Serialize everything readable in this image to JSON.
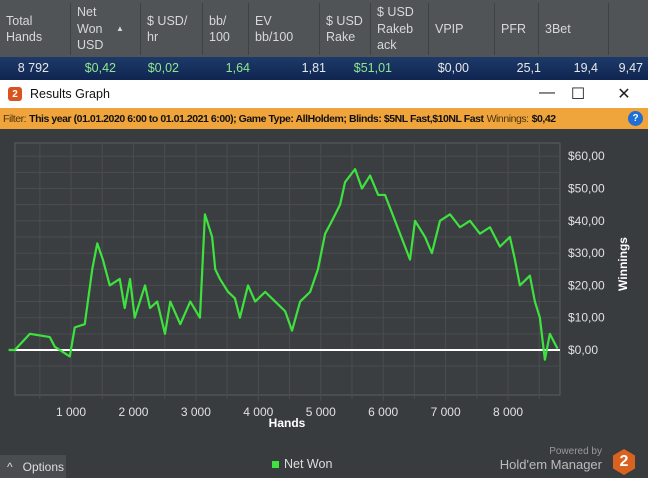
{
  "table": {
    "columns": [
      {
        "label": "Total Hands",
        "w": 71
      },
      {
        "label": "Net Won USD",
        "w": 70,
        "sort": "▲"
      },
      {
        "label": "$ USD/ hr",
        "w": 62
      },
      {
        "label": "bb/ 100",
        "w": 46
      },
      {
        "label": "EV bb/100",
        "w": 71
      },
      {
        "label": "$ USD Rake",
        "w": 51
      },
      {
        "label": "$ USD Rakeb ack",
        "w": 58
      },
      {
        "label": "VPIP",
        "w": 66
      },
      {
        "label": "PFR",
        "w": 44
      },
      {
        "label": "3Bet",
        "w": 70
      }
    ],
    "row": [
      {
        "v": "8 792",
        "r": 596,
        "g": false
      },
      {
        "v": "$0,42",
        "r": 529,
        "g": true
      },
      {
        "v": "$0,02",
        "r": 466,
        "g": true
      },
      {
        "v": "1,64",
        "r": 395,
        "g": true
      },
      {
        "v": "1,81",
        "r": 319,
        "g": false
      },
      {
        "v": "$51,01",
        "r": 253,
        "g": true
      },
      {
        "v": "$0,00",
        "r": 176,
        "g": false
      },
      {
        "v": "25,1",
        "r": 104,
        "g": false
      },
      {
        "v": "19,4",
        "r": 47,
        "g": false
      },
      {
        "v": "9,47",
        "r": 2,
        "g": false
      }
    ]
  },
  "window": {
    "title": "Results Graph",
    "logo": "2",
    "minimize": "—",
    "maximize": "☐",
    "close": "✕"
  },
  "filter": {
    "label": "Filter:",
    "text": "This year (01.01.2020 6:00 to 01.01.2021 6:00); Game Type: AllHoldem; Blinds: $5NL Fast,$10NL Fast",
    "winnings_label": "Winnings:",
    "winnings_value": "$0,42",
    "help": "?"
  },
  "chart_data": {
    "type": "line",
    "xlabel": "Hands",
    "ylabel": "Winnings",
    "xlim": [
      0,
      8900
    ],
    "ylim": [
      -8,
      64
    ],
    "xticks": [
      1000,
      2000,
      3000,
      4000,
      5000,
      6000,
      7000,
      8000
    ],
    "xtick_labels": [
      "1 000",
      "2 000",
      "3 000",
      "4 000",
      "5 000",
      "6 000",
      "7 000",
      "8 000"
    ],
    "yticks": [
      0,
      10,
      20,
      30,
      40,
      50,
      60
    ],
    "ytick_labels": [
      "$0,00",
      "$10,00",
      "$20,00",
      "$30,00",
      "$40,00",
      "$50,00",
      "$60,00"
    ],
    "grid": true,
    "legend": "bottom",
    "color": "#3ee23e",
    "series": [
      {
        "name": "Net Won",
        "x": [
          0,
          100,
          340,
          660,
          740,
          980,
          1060,
          1220,
          1340,
          1420,
          1510,
          1620,
          1780,
          1860,
          1945,
          2020,
          2185,
          2265,
          2380,
          2505,
          2590,
          2750,
          2910,
          3065,
          3145,
          3260,
          3310,
          3385,
          3515,
          3625,
          3705,
          3835,
          3950,
          4110,
          4270,
          4430,
          4540,
          4670,
          4830,
          4955,
          5070,
          5180,
          5310,
          5390,
          5550,
          5660,
          5790,
          5920,
          6030,
          6190,
          6350,
          6430,
          6510,
          6670,
          6780,
          6910,
          7070,
          7230,
          7390,
          7550,
          7710,
          7870,
          8030,
          8110,
          8190,
          8350,
          8430,
          8510,
          8590,
          8670,
          8792
        ],
        "y": [
          0,
          0,
          5,
          4,
          1,
          -2,
          7,
          8,
          25,
          33,
          28,
          20,
          22,
          13,
          22,
          10,
          20,
          13,
          15,
          5,
          15,
          8,
          15,
          10,
          42,
          35,
          25,
          22,
          18,
          16,
          10,
          20,
          15,
          18,
          15,
          12,
          6,
          15,
          18,
          25,
          36,
          40,
          45,
          52,
          56,
          50,
          54,
          48,
          48,
          40,
          32,
          28,
          40,
          35,
          30,
          40,
          42,
          38,
          40,
          36,
          38,
          32,
          35,
          28,
          20,
          23,
          15,
          10,
          -3,
          5,
          0.42
        ]
      }
    ]
  },
  "footer": {
    "options": "Options",
    "options_icon": "^",
    "powered": "Powered by",
    "brand": "Hold'em Manager",
    "brand_logo": "2"
  }
}
